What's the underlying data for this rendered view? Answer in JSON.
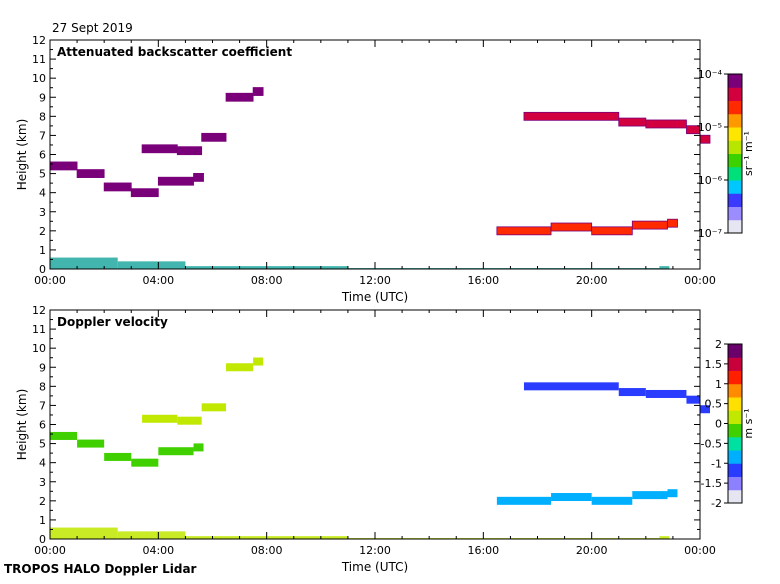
{
  "header": {
    "date": "27 Sept 2019"
  },
  "footer": {
    "instrument": "TROPOS HALO Doppler Lidar"
  },
  "colors": {
    "backscatter_scale": [
      "#e6e6f2",
      "#9b8cff",
      "#3b3bff",
      "#00c8ff",
      "#00e07a",
      "#3cd200",
      "#b8e600",
      "#ffe600",
      "#ff9900",
      "#ff2a00",
      "#d3003f",
      "#7a007a"
    ],
    "velocity_scale": [
      "#e6e6f2",
      "#8c80ff",
      "#2a3cff",
      "#00b0ff",
      "#00e0a0",
      "#40d000",
      "#c0e800",
      "#ffe000",
      "#ff8c00",
      "#ff2000",
      "#c8003c",
      "#6a006a"
    ],
    "surface_layer": "#20a8a0"
  },
  "chart_data": [
    {
      "type": "heatmap",
      "title": "Attenuated backscatter coefficient",
      "xlabel": "Time (UTC)",
      "ylabel": "Height (km)",
      "xlim": [
        0,
        24
      ],
      "ylim": [
        0,
        12
      ],
      "x_ticks": [
        "00:00",
        "04:00",
        "08:00",
        "12:00",
        "16:00",
        "20:00",
        "00:00"
      ],
      "y_ticks": [
        "0",
        "1",
        "2",
        "3",
        "4",
        "5",
        "6",
        "7",
        "8",
        "9",
        "10",
        "11",
        "12"
      ],
      "colorbar": {
        "label": "sr⁻¹ m⁻¹",
        "scale": "log",
        "range": [
          1e-07,
          0.0001
        ],
        "ticks": [
          "10⁻⁷",
          "10⁻⁶",
          "10⁻⁵",
          "10⁻⁴"
        ]
      },
      "features": [
        {
          "feature": "mid-level cloud layer",
          "x": [
            0.0,
            1.0,
            2.0,
            3.0,
            4.0,
            5.3
          ],
          "y": [
            5.4,
            5.0,
            4.3,
            4.0,
            4.6,
            4.8
          ],
          "value": 6e-05
        },
        {
          "feature": "cloud patches",
          "x": [
            3.4,
            4.7,
            5.6,
            6.5,
            7.5
          ],
          "y": [
            6.3,
            6.2,
            6.9,
            9.0,
            9.3
          ],
          "value": 8e-05
        },
        {
          "feature": "low-level cloud layer",
          "x": [
            16.5,
            18.5,
            20.0,
            21.5,
            22.8
          ],
          "y": [
            2.0,
            2.2,
            2.0,
            2.3,
            2.4
          ],
          "value": 2e-05
        },
        {
          "feature": "high cloud",
          "x": [
            17.5,
            21.0,
            22.0,
            23.5,
            24.0
          ],
          "y": [
            8.0,
            7.7,
            7.6,
            7.3,
            6.8
          ],
          "value": 5e-05
        },
        {
          "feature": "surface aerosol layer",
          "x": [
            0.0,
            2.5,
            5.0,
            11.0,
            16.0,
            22.5
          ],
          "y": [
            0.6,
            0.4,
            0.15,
            0.05,
            0.05,
            0.15
          ],
          "value": 3e-06
        }
      ]
    },
    {
      "type": "heatmap",
      "title": "Doppler velocity",
      "xlabel": "Time (UTC)",
      "ylabel": "Height (km)",
      "xlim": [
        0,
        24
      ],
      "ylim": [
        0,
        12
      ],
      "x_ticks": [
        "00:00",
        "04:00",
        "08:00",
        "12:00",
        "16:00",
        "20:00",
        "00:00"
      ],
      "y_ticks": [
        "0",
        "1",
        "2",
        "3",
        "4",
        "5",
        "6",
        "7",
        "8",
        "9",
        "10",
        "11",
        "12"
      ],
      "colorbar": {
        "label": "m s⁻¹",
        "scale": "linear",
        "range": [
          -2,
          2
        ],
        "ticks": [
          "-2",
          "-1.5",
          "-1",
          "-0.5",
          "0",
          "0.5",
          "1",
          "1.5",
          "2"
        ]
      },
      "features": [
        {
          "feature": "mid-level cloud layer",
          "x": [
            0.0,
            1.0,
            2.0,
            3.0,
            4.0,
            5.3
          ],
          "y": [
            5.4,
            5.0,
            4.3,
            4.0,
            4.6,
            4.8
          ],
          "value": -0.2
        },
        {
          "feature": "cloud patches",
          "x": [
            3.4,
            4.7,
            5.6,
            6.5,
            7.5
          ],
          "y": [
            6.3,
            6.2,
            6.9,
            9.0,
            9.3
          ],
          "value": 0.1
        },
        {
          "feature": "low-level cloud layer",
          "x": [
            16.5,
            18.5,
            20.0,
            21.5,
            22.8
          ],
          "y": [
            2.0,
            2.2,
            2.0,
            2.3,
            2.4
          ],
          "value": -0.8
        },
        {
          "feature": "high cloud",
          "x": [
            17.5,
            21.0,
            22.0,
            23.5,
            24.0
          ],
          "y": [
            8.0,
            7.7,
            7.6,
            7.3,
            6.8
          ],
          "value": -1.1
        },
        {
          "feature": "near-surface layer",
          "x": [
            0.0,
            2.5,
            5.0,
            11.0,
            16.0,
            22.5
          ],
          "y": [
            0.6,
            0.4,
            0.15,
            0.05,
            0.05,
            0.15
          ],
          "value": 0.0
        }
      ]
    }
  ]
}
